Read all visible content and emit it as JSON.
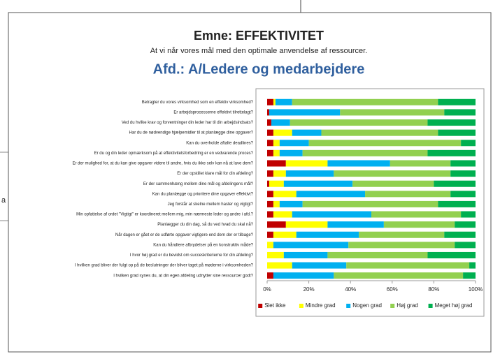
{
  "side_fragment": "a",
  "chart_data": {
    "type": "stacked-barh",
    "title": "Emne: EFFEKTIVITET",
    "subtitle": "At vi når vores mål med den optimale anvendelse af ressourcer.",
    "heading": "Afd.: A/Ledere og medarbejdere",
    "categories": [
      "Betragter du vores virksomhed som en effektiv virksomhed?",
      "Er arbejdsprocesserne effektivt tilrettelagt?",
      "Ved du hvilke krav og forventninger din leder har til din arbejdsindsats?",
      "Har du de nødvendige hjælpemidler til at planlægge dine opgaver?",
      "Kan du overholde aftalte deadlines?",
      "Er du og din leder opmærksom på at effektivitetsforbedring er en vedvarende proces?",
      "Er der mulighed for, at du kan give opgaver videre til andre, hvis du ikke selv kan nå at lave dem?",
      "Er der opstillet klare mål for din afdeling?",
      "Er der sammenhæng mellem dine mål og afdelingens mål?",
      "Kan du planlægge og prioritere dine opgaver effektivt?",
      "Jeg forstår at skelne mellem haster og vigtigt?",
      "Min opfattelse af ordet \"Vigtigt\" er koordineret mellem mig, min nærmeste leder og andre i afd.?",
      "Planlægger du din dag, så du ved hvad du skal nå?",
      "Når dagen er gået er de udførte opgaver vigtigere end dem der er tilbage?",
      "Kan du håndtere afbrydelser på en konstruktiv måde?",
      "I hvor høj grad er du bevidst om succeskriterierne for din afdeling?",
      "I hvilken grad bliver der fulgt op på de beslutninger der bliver taget på møderne i virksomheden?",
      "I hvilken grad synes du, at din egen afdeling udnytter sine ressourcer godt?"
    ],
    "series": [
      {
        "name": "Slet ikke",
        "color": "#c00000",
        "values": [
          3,
          1,
          2,
          3,
          3,
          3,
          9,
          3,
          1,
          3,
          3,
          3,
          9,
          3,
          0,
          0,
          0,
          3
        ]
      },
      {
        "name": "Mindre grad",
        "color": "#ffff00",
        "values": [
          1,
          0,
          0,
          9,
          3,
          3,
          20,
          6,
          7,
          11,
          3,
          9,
          20,
          11,
          3,
          8,
          12,
          0
        ]
      },
      {
        "name": "Nogen grad",
        "color": "#00b0f0",
        "values": [
          8,
          34,
          9,
          14,
          14,
          11,
          30,
          23,
          33,
          33,
          11,
          38,
          27,
          30,
          36,
          21,
          26,
          29
        ]
      },
      {
        "name": "Høj grad",
        "color": "#92d050",
        "values": [
          70,
          50,
          66,
          56,
          73,
          60,
          29,
          56,
          39,
          41,
          65,
          43,
          34,
          41,
          51,
          48,
          59,
          62
        ]
      },
      {
        "name": "Meget høj grad",
        "color": "#00b050",
        "values": [
          18,
          15,
          23,
          18,
          7,
          23,
          12,
          12,
          20,
          12,
          18,
          7,
          10,
          15,
          10,
          23,
          3,
          6
        ]
      }
    ],
    "xlim": [
      0,
      100
    ],
    "xticks": [
      {
        "value": 0,
        "label": "0%"
      },
      {
        "value": 20,
        "label": "20%"
      },
      {
        "value": 40,
        "label": "40%"
      },
      {
        "value": 60,
        "label": "60%"
      },
      {
        "value": 80,
        "label": "80%"
      },
      {
        "value": 100,
        "label": "100%"
      }
    ],
    "legend": "bottom"
  }
}
